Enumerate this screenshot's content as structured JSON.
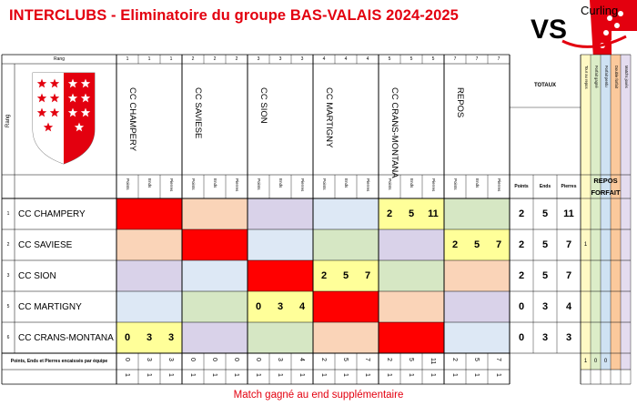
{
  "title": "INTERCLUBS - Eliminatoire du groupe BAS-VALAIS 2024-2025",
  "logo": {
    "text_top": "Curling",
    "text_bottom": "VS"
  },
  "header": {
    "rang_label": "Rang",
    "rang_vertical": "Rang",
    "totaux_label": "TOTAUX",
    "sub_labels": [
      "Points",
      "Ends",
      "Pierres"
    ],
    "totals_sub": [
      "Points",
      "Ends",
      "Pierres"
    ],
    "repos_label": "REPOS",
    "forfait_label": "FORFAIT",
    "extra_cols": [
      "Tour au repos",
      "Forfait gagné",
      "Forfait perdu",
      "Double forfait",
      "Matchs joués"
    ]
  },
  "teams": [
    "CC CHAMPERY",
    "CC SAVIESE",
    "CC SION",
    "CC MARTIGNY",
    "CC CRANS-MONTANA",
    "REPOS"
  ],
  "rang_header": [
    [
      "1",
      "1",
      "1"
    ],
    [
      "2",
      "2",
      "2"
    ],
    [
      "3",
      "3",
      "3"
    ],
    [
      "4",
      "4",
      "4"
    ],
    [
      "5",
      "5",
      "5"
    ],
    [
      "7",
      "7",
      "7"
    ]
  ],
  "rows": [
    {
      "rank": "1",
      "name": "CC CHAMPERY",
      "results": {
        "4": [
          "2",
          "5",
          "11"
        ]
      },
      "totals": [
        "2",
        "5",
        "11"
      ],
      "extra": [
        "",
        "",
        "",
        "",
        ""
      ]
    },
    {
      "rank": "2",
      "name": "CC SAVIESE",
      "results": {
        "5": [
          "2",
          "5",
          "7"
        ]
      },
      "totals": [
        "2",
        "5",
        "7"
      ],
      "extra": [
        "1",
        "",
        "",
        "",
        ""
      ]
    },
    {
      "rank": "3",
      "name": "CC SION",
      "results": {
        "3": [
          "2",
          "5",
          "7"
        ]
      },
      "totals": [
        "2",
        "5",
        "7"
      ],
      "extra": [
        "",
        "",
        "",
        "",
        ""
      ]
    },
    {
      "rank": "5",
      "name": "CC MARTIGNY",
      "results": {
        "2": [
          "0",
          "3",
          "4"
        ]
      },
      "totals": [
        "0",
        "3",
        "4"
      ],
      "extra": [
        "",
        "",
        "",
        "",
        ""
      ]
    },
    {
      "rank": "6",
      "name": "CC CRANS-MONTANA",
      "results": {
        "0": [
          "0",
          "3",
          "3"
        ]
      },
      "totals": [
        "0",
        "3",
        "3"
      ],
      "extra": [
        "",
        "",
        "",
        "",
        ""
      ]
    }
  ],
  "encaisses": {
    "label": "Points, Ends et Pierres encaissés par équipe",
    "values": [
      [
        "0",
        "3",
        "3"
      ],
      [
        "0",
        "0",
        "0"
      ],
      [
        "0",
        "3",
        "4"
      ],
      [
        "2",
        "5",
        "7"
      ],
      [
        "2",
        "5",
        "11"
      ],
      [
        "2",
        "5",
        "7"
      ]
    ],
    "extra": [
      "1",
      "0",
      "0",
      "",
      ""
    ]
  },
  "bottom_row": [
    [
      "1",
      "1",
      "1"
    ],
    [
      "1",
      "1",
      "1"
    ],
    [
      "1",
      "1",
      "1"
    ],
    [
      "1",
      "1",
      "1"
    ],
    [
      "1",
      "1",
      "1"
    ],
    [
      "1",
      "1",
      "1"
    ]
  ],
  "footer": "Match gagné au end supplémentaire",
  "colors": {
    "red": "#ff0000",
    "peach": "#fad4b8",
    "lavender": "#d9d2e9",
    "lightblue": "#dde8f5",
    "lightgreen": "#d6e7c4",
    "yellow": "#ffff99",
    "extra_yellow": "#fff9c4",
    "extra_green": "#dcedc8",
    "extra_blue": "#cfe2f3",
    "extra_orange": "#fbc99c",
    "extra_lav": "#e4dcef"
  }
}
